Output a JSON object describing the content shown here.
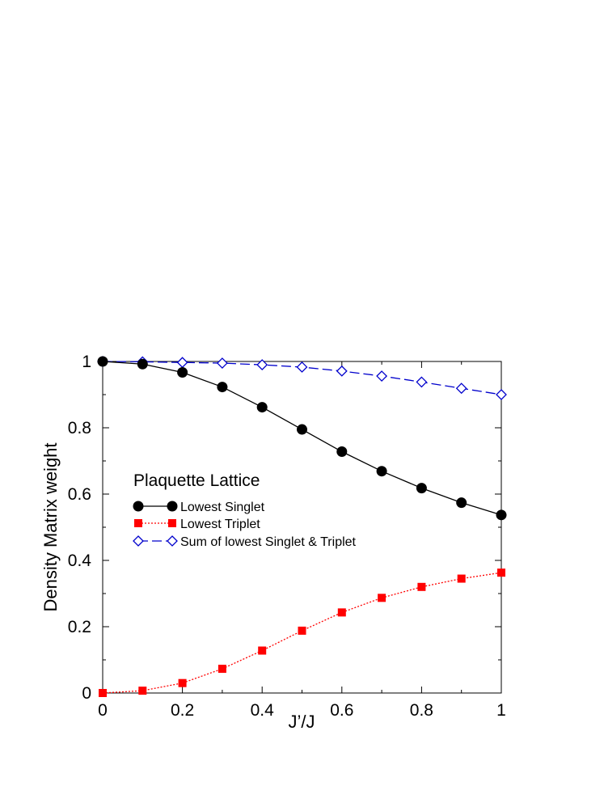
{
  "chart_data": {
    "type": "line",
    "title": "",
    "xlabel": "J’/J",
    "ylabel": "Density Matrix weight",
    "xlim": [
      0,
      1
    ],
    "ylim": [
      0,
      1
    ],
    "xticks": [
      0,
      0.2,
      0.4,
      0.6,
      0.8,
      1
    ],
    "yticks": [
      0,
      0.2,
      0.4,
      0.6,
      0.8,
      1
    ],
    "x": [
      0,
      0.1,
      0.2,
      0.3,
      0.4,
      0.5,
      0.6,
      0.7,
      0.8,
      0.9,
      1.0
    ],
    "grid": false,
    "legend_title": "Plaquette Lattice",
    "legend_position": "center-left",
    "series": [
      {
        "name": "Lowest Singlet",
        "color": "#000000",
        "marker": "filled-circle",
        "line_style": "solid",
        "values": [
          1.0,
          0.992,
          0.967,
          0.923,
          0.862,
          0.795,
          0.728,
          0.669,
          0.618,
          0.574,
          0.537
        ]
      },
      {
        "name": "Lowest Triplet",
        "color": "#ff0000",
        "marker": "filled-square",
        "line_style": "dotted",
        "values": [
          0.0,
          0.007,
          0.03,
          0.073,
          0.128,
          0.188,
          0.243,
          0.287,
          0.32,
          0.345,
          0.363
        ]
      },
      {
        "name": "Sum of lowest Singlet & Triplet",
        "color": "#0000cc",
        "marker": "open-diamond",
        "line_style": "dashed",
        "values": [
          1.0,
          0.999,
          0.997,
          0.995,
          0.99,
          0.983,
          0.971,
          0.956,
          0.938,
          0.919,
          0.9
        ]
      }
    ]
  }
}
